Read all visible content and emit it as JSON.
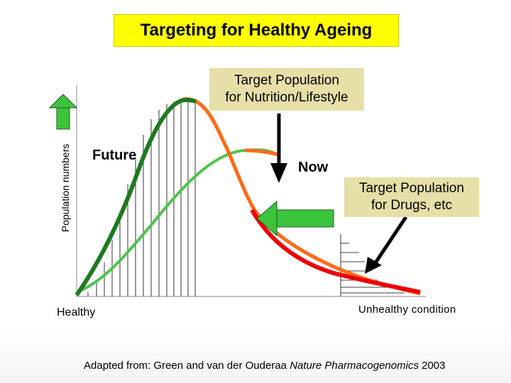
{
  "slide": {
    "title": "Targeting for Healthy Ageing",
    "y_axis_label": "Population numbers",
    "labels": {
      "future": "Future",
      "now": "Now",
      "healthy": "Healthy",
      "unhealthy": "Unhealthy condition"
    },
    "callouts": {
      "nutrition": [
        "Target Population",
        "for Nutrition/Lifestyle"
      ],
      "drugs": [
        "Target Population",
        "for Drugs, etc"
      ]
    },
    "citation": {
      "prefix": "Adapted from: Green  and van der Ouderaa  ",
      "journal": "Nature Pharmacogenomics",
      "year": " 2003"
    }
  },
  "colors": {
    "title_bg": "#ffff00",
    "callout_bg": "#e6e0a8",
    "future_curve": "#1e7a1e",
    "now_curve": "#ff6a1a",
    "light_green_curve": "#4cc44c",
    "red_curve": "#ee0000",
    "arrow_green": "#3cc43c",
    "arrow_black": "#000000"
  }
}
